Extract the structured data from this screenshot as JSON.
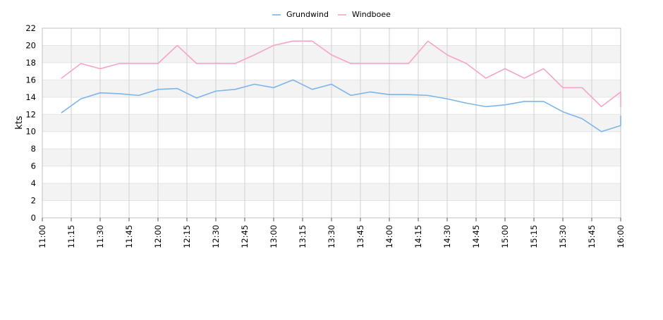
{
  "chart_data": {
    "type": "line",
    "title": "",
    "xlabel": "",
    "ylabel": "kts",
    "ylim": [
      0,
      22
    ],
    "yticks": [
      0,
      2,
      4,
      6,
      8,
      10,
      12,
      14,
      16,
      18,
      20,
      22
    ],
    "xrange": [
      "11:00",
      "16:00"
    ],
    "xtick_labels": [
      "11:00",
      "11:15",
      "11:30",
      "11:45",
      "12:00",
      "12:15",
      "12:30",
      "12:45",
      "13:00",
      "13:15",
      "13:30",
      "13:45",
      "14:00",
      "14:15",
      "14:30",
      "14:45",
      "15:00",
      "15:15",
      "15:30",
      "15:45",
      "16:00"
    ],
    "grid": true,
    "legend_position": "top-center",
    "x": [
      "11:10",
      "11:20",
      "11:30",
      "11:40",
      "11:50",
      "12:00",
      "12:10",
      "12:20",
      "12:30",
      "12:40",
      "12:50",
      "13:00",
      "13:10",
      "13:20",
      "13:30",
      "13:40",
      "13:50",
      "14:00",
      "14:10",
      "14:20",
      "14:30",
      "14:40",
      "14:50",
      "15:00",
      "15:10",
      "15:20",
      "15:30",
      "15:40",
      "15:50",
      "16:00",
      "16:00"
    ],
    "series": [
      {
        "name": "Grundwind",
        "color": "#7cb5ec",
        "values": [
          12.2,
          13.8,
          14.5,
          14.4,
          14.2,
          14.9,
          15.0,
          13.9,
          14.7,
          14.9,
          15.5,
          15.1,
          16.0,
          14.9,
          15.5,
          14.2,
          14.6,
          14.3,
          14.3,
          14.2,
          13.8,
          13.3,
          12.9,
          13.1,
          13.5,
          13.5,
          12.3,
          11.5,
          10.0,
          10.7,
          11.8
        ]
      },
      {
        "name": "Windboee",
        "color": "#f7a3c7",
        "values": [
          16.2,
          17.9,
          17.3,
          17.9,
          17.9,
          17.9,
          20.0,
          17.9,
          17.9,
          17.9,
          18.9,
          20.0,
          20.5,
          20.5,
          18.9,
          17.9,
          17.9,
          17.9,
          17.9,
          20.5,
          18.9,
          17.9,
          16.2,
          17.3,
          16.2,
          17.3,
          15.1,
          15.1,
          12.9,
          14.6,
          12.9
        ]
      }
    ]
  }
}
